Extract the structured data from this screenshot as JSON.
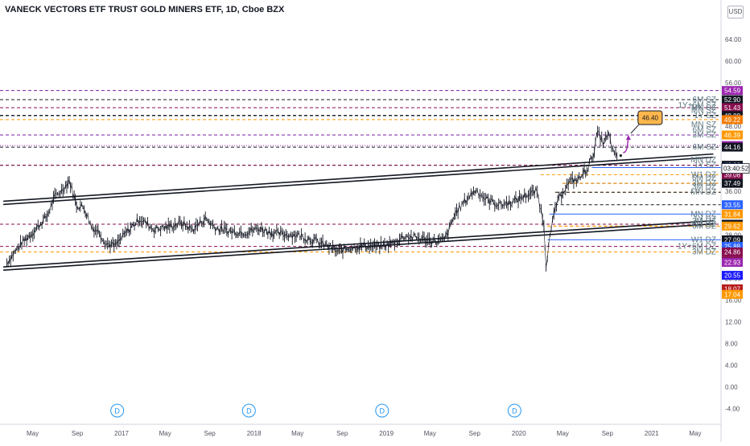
{
  "header": {
    "title": "VANECK VECTORS ETF TRUST GOLD MINERS ETF, 1D, Cboe BZX",
    "currency": "USD"
  },
  "chart_data": {
    "type": "line",
    "title": "VANECK VECTORS ETF TRUST GOLD MINERS ETF, 1D, Cboe BZX",
    "xlabel": "",
    "ylabel": "",
    "x_ticks": [
      "May",
      "Sep",
      "2017",
      "May",
      "Sep",
      "2018",
      "May",
      "Sep",
      "2019",
      "May",
      "Sep",
      "2020",
      "May",
      "Sep",
      "2021",
      "May"
    ],
    "y_ticks": [
      -4.0,
      0.0,
      4.0,
      8.0,
      12.0,
      16.0,
      20.0,
      24.0,
      28.0,
      32.0,
      36.0,
      40.0,
      44.0,
      48.0,
      52.0,
      56.0,
      60.0,
      64.0
    ],
    "ylim": [
      -6,
      68
    ],
    "time_range": [
      "2016-02",
      "2021-06"
    ],
    "price_series": {
      "name": "",
      "points": [
        [
          "2016-02-20",
          22.9
        ],
        [
          "2016-04-01",
          26.5
        ],
        [
          "2016-05-05",
          28.7
        ],
        [
          "2016-06-10",
          31.5
        ],
        [
          "2016-07-01",
          35.0
        ],
        [
          "2016-07-20",
          36.2
        ],
        [
          "2016-08-10",
          38.0
        ],
        [
          "2016-08-30",
          33.5
        ],
        [
          "2016-09-20",
          33.0
        ],
        [
          "2016-10-10",
          29.5
        ],
        [
          "2016-11-01",
          28.5
        ],
        [
          "2016-11-20",
          26.4
        ],
        [
          "2016-12-15",
          26.0
        ],
        [
          "2017-01-15",
          28.5
        ],
        [
          "2017-02-20",
          31.0
        ],
        [
          "2017-04-01",
          29.0
        ],
        [
          "2017-05-10",
          29.5
        ],
        [
          "2017-06-15",
          30.2
        ],
        [
          "2017-07-15",
          29.0
        ],
        [
          "2017-08-20",
          31.0
        ],
        [
          "2017-09-20",
          29.2
        ],
        [
          "2017-11-01",
          28.6
        ],
        [
          "2017-12-10",
          28.5
        ],
        [
          "2018-01-15",
          29.2
        ],
        [
          "2018-03-01",
          28.2
        ],
        [
          "2018-05-01",
          28.0
        ],
        [
          "2018-06-15",
          27.0
        ],
        [
          "2018-07-20",
          26.0
        ],
        [
          "2018-08-20",
          24.9
        ],
        [
          "2018-09-20",
          25.6
        ],
        [
          "2018-11-01",
          26.0
        ],
        [
          "2018-12-10",
          25.8
        ],
        [
          "2019-01-20",
          26.5
        ],
        [
          "2019-02-20",
          27.8
        ],
        [
          "2019-04-01",
          27.4
        ],
        [
          "2019-05-20",
          26.8
        ],
        [
          "2019-06-10",
          27.2
        ],
        [
          "2019-06-20",
          28.5
        ],
        [
          "2019-07-10",
          32.0
        ],
        [
          "2019-08-15",
          35.0
        ],
        [
          "2019-09-05",
          36.3
        ],
        [
          "2019-10-01",
          34.6
        ],
        [
          "2019-11-10",
          33.5
        ],
        [
          "2019-12-20",
          34.2
        ],
        [
          "2020-01-20",
          35.3
        ],
        [
          "2020-02-20",
          36.0
        ],
        [
          "2020-03-10",
          30.0
        ],
        [
          "2020-03-16",
          22.5
        ],
        [
          "2020-03-23",
          26.0
        ],
        [
          "2020-04-10",
          33.0
        ],
        [
          "2020-05-01",
          36.0
        ],
        [
          "2020-05-20",
          37.8
        ],
        [
          "2020-06-15",
          38.3
        ],
        [
          "2020-07-10",
          40.5
        ],
        [
          "2020-07-27",
          43.5
        ],
        [
          "2020-08-05",
          47.0
        ],
        [
          "2020-08-20",
          45.0
        ],
        [
          "2020-09-05",
          46.3
        ],
        [
          "2020-09-20",
          42.5
        ],
        [
          "2020-10-01",
          42.6
        ]
      ]
    },
    "forecast": {
      "from": [
        "2020-10-01",
        43.1
      ],
      "to": [
        "2020-10-20",
        46.4
      ],
      "color": "#9c27b0"
    },
    "forecast_label": "46.40",
    "trend_channel": [
      {
        "name": "",
        "from": [
          "2016-02-10",
          33.9
        ],
        "to": [
          "2021-06-20",
          42.6
        ],
        "color": "#131722"
      },
      {
        "name": "",
        "from": [
          "2016-02-10",
          21.8
        ],
        "to": [
          "2021-06-20",
          30.3
        ],
        "color": "#131722"
      }
    ],
    "levels": [
      {
        "price": 54.59,
        "label": "",
        "color": "#7b1fa2",
        "style": "dashed",
        "start": "2016-02-01",
        "tag_bg": "#9c27b0",
        "tag_text": "#ffffff"
      },
      {
        "price": 52.9,
        "label": "6M SZ",
        "color": "#131722",
        "style": "dashed",
        "start": "2016-02-01",
        "tag_bg": "#131722",
        "tag_text": "#ffffff"
      },
      {
        "price": 51.43,
        "label": "MN SZ",
        "color": "#880e4f",
        "style": "dashed",
        "start": "2016-02-01",
        "tag_bg": "#880e4f",
        "tag_text": "#ffffff"
      },
      {
        "price": 49.98,
        "label": "1Y SZ",
        "color": "#131722",
        "style": "dashed",
        "start": "2016-02-01",
        "tag_bg": "#131722",
        "tag_text": "#ffffff"
      },
      {
        "price": 49.98,
        "label": "MN SZ",
        "color": "#131722",
        "style": "dashed",
        "start": "2016-02-01",
        "tag_bg": "",
        "tag_text": ""
      },
      {
        "price": 49.98,
        "label": "1Y+6M SZ",
        "color": "#131722",
        "style": "dashed",
        "start": "2016-02-01",
        "tag_bg": "",
        "tag_text": ""
      },
      {
        "price": 49.22,
        "label": "",
        "color": "#ff9800",
        "style": "dashed",
        "start": "2016-02-01",
        "tag_bg": "#f57c00",
        "tag_text": "#ffffff"
      },
      {
        "price": 46.39,
        "label": "3M SZ",
        "color": "#7b1fa2",
        "style": "dashed",
        "start": "2016-02-01",
        "tag_bg": "#ff9800",
        "tag_text": "#ffffff"
      },
      {
        "price": 46.39,
        "label": "6M SZ",
        "color": "#7b1fa2",
        "style": "dashed",
        "start": "2016-02-01",
        "tag_bg": "",
        "tag_text": ""
      },
      {
        "price": 46.39,
        "label": "MN SZ",
        "color": "#7b1fa2",
        "style": "dashed",
        "start": "2016-02-01",
        "tag_bg": "",
        "tag_text": ""
      },
      {
        "price": 44.45,
        "label": "",
        "color": "#9c27b0",
        "style": "dotted",
        "start": "2016-02-01",
        "tag_bg": "#9c27b0",
        "tag_text": "#ffffff"
      },
      {
        "price": 44.16,
        "label": "6M SZ",
        "color": "#131722",
        "style": "dashed",
        "start": "2016-02-01",
        "tag_bg": "#131722",
        "tag_text": "#ffffff"
      },
      {
        "price": 40.83,
        "label": "1Y SZ",
        "color": "#131722",
        "style": "dashed",
        "start": "2016-02-01",
        "tag_bg": "#131722",
        "tag_text": "#ffffff"
      },
      {
        "price": 40.83,
        "label": "MN DZ",
        "color": "#880e4f",
        "style": "dashed",
        "start": "2016-02-01",
        "tag_bg": "",
        "tag_text": ""
      },
      {
        "price": 40.4,
        "label": "",
        "color": "#2962ff",
        "style": "solid",
        "start": "2020-07-20",
        "tag_bg": "#2962ff",
        "tag_text": "#ffffff"
      },
      {
        "price": 39.08,
        "label": "W1 DZ",
        "color": "#ff9800",
        "style": "dashed",
        "start": "2020-03-01",
        "tag_bg": "#880e4f",
        "tag_text": "#ffffff"
      },
      {
        "price": 37.49,
        "label": "3M DZ",
        "color": "#131722",
        "style": "dashed",
        "start": "2020-05-01",
        "tag_bg": "#131722",
        "tag_text": "#ffffff"
      },
      {
        "price": 37.49,
        "label": "6M DZ",
        "color": "#ff9800",
        "style": "dashed",
        "start": "2020-05-01",
        "tag_bg": "",
        "tag_text": ""
      },
      {
        "price": 35.85,
        "label": "MN DZ",
        "color": "#ff9800",
        "style": "dashed",
        "start": "2020-04-10",
        "tag_bg": "",
        "tag_text": ""
      },
      {
        "price": 35.85,
        "label": "3M DZ",
        "color": "#131722",
        "style": "dashed",
        "start": "2020-04-10",
        "tag_bg": "",
        "tag_text": ""
      },
      {
        "price": 33.55,
        "label": "",
        "color": "#131722",
        "style": "dashed",
        "start": "2020-03-25",
        "tag_bg": "#2962ff",
        "tag_text": "#ffffff"
      },
      {
        "price": 31.84,
        "label": "MN DZ",
        "color": "#2962ff",
        "style": "solid",
        "start": "2020-03-25",
        "tag_bg": "#ff9800",
        "tag_text": "#ffffff"
      },
      {
        "price": 29.97,
        "label": "W1 DZ",
        "color": "#880e4f",
        "style": "dashed",
        "start": "2016-02-01",
        "tag_bg": "#131722",
        "tag_text": "#ffffff"
      },
      {
        "price": 29.97,
        "label": "1Y DZ",
        "color": "#880e4f",
        "style": "dashed",
        "start": "2016-02-01",
        "tag_bg": "",
        "tag_text": ""
      },
      {
        "price": 29.62,
        "label": "6M DZ",
        "color": "#ff9800",
        "style": "dashed",
        "start": "2020-03-20",
        "tag_bg": "#ff9800",
        "tag_text": "#ffffff"
      },
      {
        "price": 29.62,
        "label": "3M DZ",
        "color": "#ff9800",
        "style": "dashed",
        "start": "2020-03-20",
        "tag_bg": "",
        "tag_text": ""
      },
      {
        "price": 27.09,
        "label": "W1 DZ",
        "color": "#2962ff",
        "style": "solid",
        "start": "2020-03-20",
        "tag_bg": "#131722",
        "tag_text": "#ffffff"
      },
      {
        "price": 25.88,
        "label": "1Y+6M DZ",
        "color": "#880e4f",
        "style": "dashed",
        "start": "2016-02-01",
        "tag_bg": "#2962ff",
        "tag_text": "#ffffff"
      },
      {
        "price": 24.86,
        "label": "3M DZ",
        "color": "#ff9800",
        "style": "dashed",
        "start": "2016-02-01",
        "tag_bg": "#880e4f",
        "tag_text": "#ffffff"
      },
      {
        "price": 23.22,
        "label": "",
        "color": "",
        "style": "none",
        "start": "",
        "tag_bg": "#880e4f",
        "tag_text": "#ffffff"
      },
      {
        "price": 22.93,
        "label": "",
        "color": "",
        "style": "none",
        "start": "",
        "tag_bg": "#9c27b0",
        "tag_text": "#ffffff"
      },
      {
        "price": 20.55,
        "label": "",
        "color": "",
        "style": "none",
        "start": "",
        "tag_bg": "#1a1aff",
        "tag_text": "#ffffff"
      },
      {
        "price": 18.07,
        "label": "",
        "color": "",
        "style": "none",
        "start": "",
        "tag_bg": "#b71c1c",
        "tag_text": "#ffffff"
      },
      {
        "price": 17.04,
        "label": "",
        "color": "",
        "style": "none",
        "start": "",
        "tag_bg": "#ff9800",
        "tag_text": "#ffffff"
      }
    ],
    "price_tags": [
      "54.59",
      "52.90",
      "51.43",
      "49.98",
      "49.22",
      "46.39",
      "44.45",
      "44.16",
      "40.83",
      "40.40",
      "39.08",
      "37.49",
      "33.55",
      "31.84",
      "29.97",
      "29.62",
      "27.09",
      "25.88",
      "24.86",
      "23.22",
      "22.93",
      "20.55",
      "18.07",
      "17.04"
    ],
    "countdown": "03:40:52",
    "dividend_markers": [
      {
        "date": "2016-12-20",
        "label": "D"
      },
      {
        "date": "2017-12-18",
        "label": "D"
      },
      {
        "date": "2018-12-20",
        "label": "D"
      },
      {
        "date": "2019-12-20",
        "label": "D"
      }
    ],
    "grid": false,
    "legend": "none"
  },
  "colors": {
    "background": "#ffffff",
    "axis_text": "#50535e",
    "candle": "#131722",
    "label_text": "#5f7883"
  }
}
